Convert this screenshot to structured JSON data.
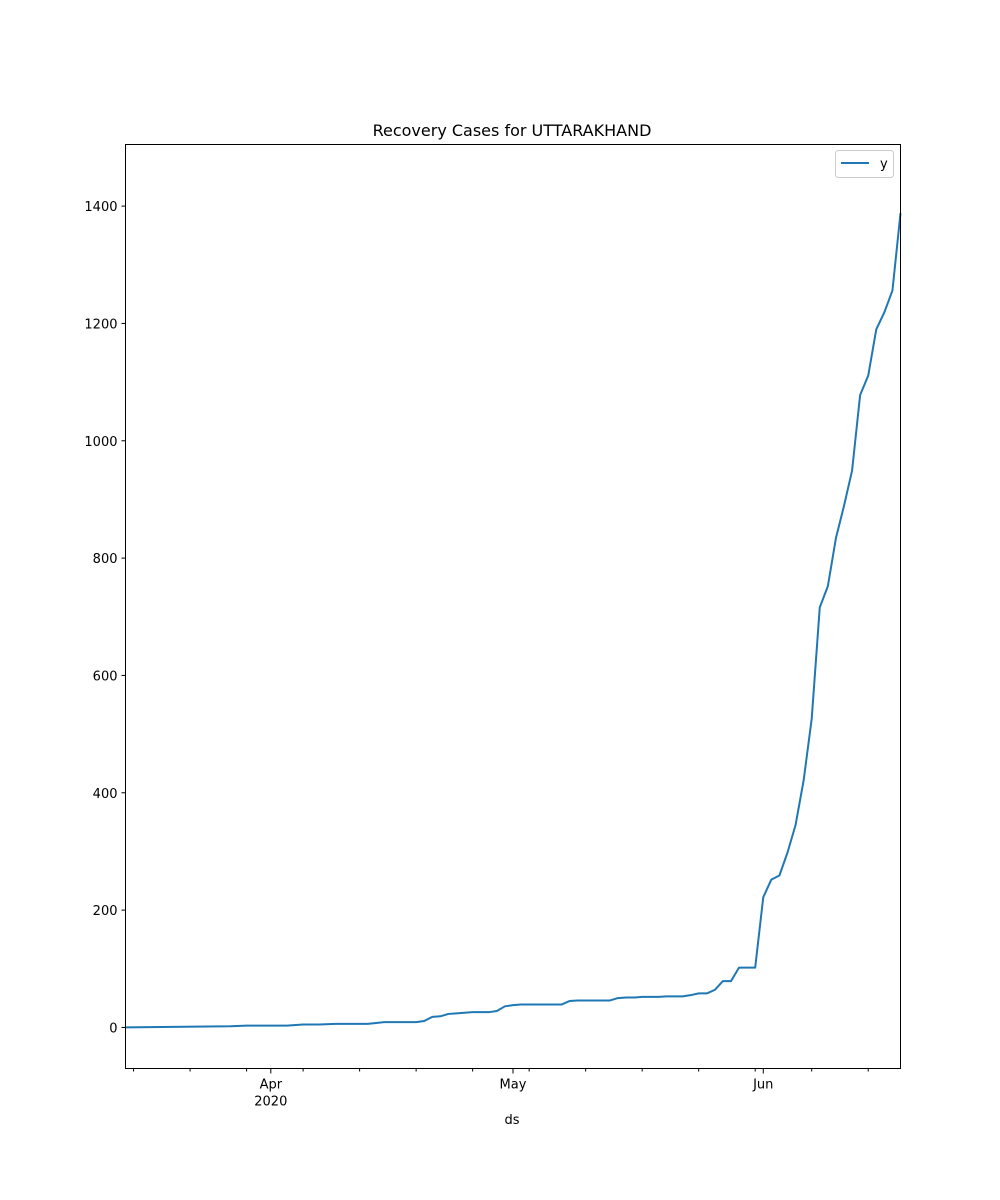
{
  "chart_data": {
    "type": "line",
    "title": "Recovery Cases for UTTARAKHAND",
    "xlabel": "ds",
    "ylabel": "",
    "x_range": [
      "2020-03-14",
      "2020-06-18"
    ],
    "ylim": [
      -70,
      1505
    ],
    "yticks": [
      0,
      200,
      400,
      600,
      800,
      1000,
      1200,
      1400
    ],
    "x_major_ticks": [
      {
        "date": "2020-04-01",
        "label": "Apr",
        "sublabel": "2020"
      },
      {
        "date": "2020-05-01",
        "label": "May",
        "sublabel": ""
      },
      {
        "date": "2020-06-01",
        "label": "Jun",
        "sublabel": ""
      }
    ],
    "x_minor_tick_dates": [
      "2020-03-15",
      "2020-03-22",
      "2020-03-29",
      "2020-04-05",
      "2020-04-12",
      "2020-04-19",
      "2020-04-26",
      "2020-05-03",
      "2020-05-10",
      "2020-05-17",
      "2020-05-24",
      "2020-05-31",
      "2020-06-07",
      "2020-06-14"
    ],
    "legend": {
      "position": "top-right",
      "entries": [
        "y"
      ]
    },
    "grid": false,
    "color": "#1f77b4",
    "series": [
      {
        "name": "y",
        "x": [
          "2020-03-14",
          "2020-03-27",
          "2020-03-29",
          "2020-04-03",
          "2020-04-05",
          "2020-04-07",
          "2020-04-09",
          "2020-04-13",
          "2020-04-15",
          "2020-04-19",
          "2020-04-20",
          "2020-04-21",
          "2020-04-22",
          "2020-04-23",
          "2020-04-24",
          "2020-04-25",
          "2020-04-26",
          "2020-04-27",
          "2020-04-28",
          "2020-04-29",
          "2020-04-30",
          "2020-05-01",
          "2020-05-02",
          "2020-05-07",
          "2020-05-08",
          "2020-05-09",
          "2020-05-13",
          "2020-05-14",
          "2020-05-15",
          "2020-05-16",
          "2020-05-17",
          "2020-05-18",
          "2020-05-19",
          "2020-05-20",
          "2020-05-21",
          "2020-05-22",
          "2020-05-23",
          "2020-05-24",
          "2020-05-25",
          "2020-05-26",
          "2020-05-27",
          "2020-05-28",
          "2020-05-29",
          "2020-05-30",
          "2020-05-31",
          "2020-06-01",
          "2020-06-02",
          "2020-06-03",
          "2020-06-04",
          "2020-06-05",
          "2020-06-06",
          "2020-06-07",
          "2020-06-08",
          "2020-06-09",
          "2020-06-10",
          "2020-06-11",
          "2020-06-12",
          "2020-06-13",
          "2020-06-14",
          "2020-06-15",
          "2020-06-16",
          "2020-06-17",
          "2020-06-18"
        ],
        "y": [
          0,
          2,
          3,
          3,
          5,
          5,
          6,
          6,
          9,
          9,
          11,
          18,
          19,
          23,
          24,
          25,
          26,
          26,
          26,
          28,
          36,
          38,
          39,
          39,
          45,
          46,
          46,
          50,
          51,
          51,
          52,
          52,
          52,
          53,
          53,
          53,
          55,
          58,
          58,
          64,
          79,
          79,
          102,
          102,
          102,
          222,
          252,
          259,
          298,
          345,
          421,
          526,
          716,
          752,
          834,
          889,
          949,
          1078,
          1111,
          1190,
          1219,
          1256,
          1388
        ]
      }
    ]
  }
}
